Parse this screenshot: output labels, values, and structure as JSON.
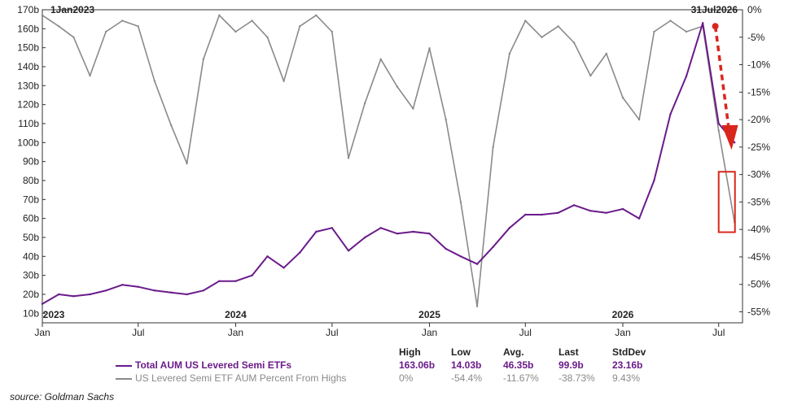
{
  "chart_data": {
    "type": "line",
    "date_range": {
      "start": "1Jan2023",
      "end": "31Jul2026"
    },
    "left_axis": {
      "ticks": [
        "10b",
        "20b",
        "30b",
        "40b",
        "50b",
        "60b",
        "70b",
        "80b",
        "90b",
        "100b",
        "110b",
        "120b",
        "130b",
        "140b",
        "150b",
        "160b",
        "170b"
      ],
      "ylim": [
        5,
        170
      ]
    },
    "right_axis": {
      "ticks": [
        "0%",
        "-5%",
        "-10%",
        "-15%",
        "-20%",
        "-25%",
        "-30%",
        "-35%",
        "-40%",
        "-45%",
        "-50%",
        "-55%"
      ],
      "ylim": [
        -57,
        0
      ]
    },
    "x_ticks": [
      "Jan",
      "Jul",
      "Jan",
      "Jul",
      "Jan",
      "Jul",
      "Jan",
      "Jul"
    ],
    "year_labels": [
      "2023",
      "2024",
      "2025",
      "2026"
    ],
    "series": [
      {
        "name": "Total AUM US Levered Semi ETFs",
        "axis": "left",
        "color": "#6a1b8a",
        "points": [
          [
            "2023-01-01",
            15
          ],
          [
            "2023-02-01",
            20
          ],
          [
            "2023-03-01",
            19
          ],
          [
            "2023-04-01",
            20
          ],
          [
            "2023-05-01",
            22
          ],
          [
            "2023-06-01",
            25
          ],
          [
            "2023-07-01",
            24
          ],
          [
            "2023-08-01",
            22
          ],
          [
            "2023-09-01",
            21
          ],
          [
            "2023-10-01",
            20
          ],
          [
            "2023-11-01",
            22
          ],
          [
            "2023-12-01",
            27
          ],
          [
            "2024-01-01",
            27
          ],
          [
            "2024-02-01",
            30
          ],
          [
            "2024-03-01",
            40
          ],
          [
            "2024-04-01",
            34
          ],
          [
            "2024-05-01",
            42
          ],
          [
            "2024-06-01",
            53
          ],
          [
            "2024-07-01",
            55
          ],
          [
            "2024-08-01",
            43
          ],
          [
            "2024-09-01",
            50
          ],
          [
            "2024-10-01",
            55
          ],
          [
            "2024-11-01",
            52
          ],
          [
            "2024-12-01",
            53
          ],
          [
            "2025-01-01",
            52
          ],
          [
            "2025-02-01",
            44
          ],
          [
            "2025-03-01",
            40
          ],
          [
            "2025-04-01",
            36
          ],
          [
            "2025-05-01",
            45
          ],
          [
            "2025-06-01",
            55
          ],
          [
            "2025-07-01",
            62
          ],
          [
            "2025-08-01",
            62
          ],
          [
            "2025-09-01",
            63
          ],
          [
            "2025-10-01",
            67
          ],
          [
            "2025-11-01",
            64
          ],
          [
            "2025-12-01",
            63
          ],
          [
            "2026-01-01",
            65
          ],
          [
            "2026-02-01",
            60
          ],
          [
            "2026-03-01",
            80
          ],
          [
            "2026-04-01",
            115
          ],
          [
            "2026-05-01",
            135
          ],
          [
            "2026-06-01",
            163
          ],
          [
            "2026-07-01",
            110
          ],
          [
            "2026-07-31",
            100
          ]
        ]
      },
      {
        "name": "US Levered Semi ETF AUM Percent From Highs",
        "axis": "right",
        "color": "#8a8a8a",
        "points": [
          [
            "2023-01-01",
            -1
          ],
          [
            "2023-02-01",
            -3
          ],
          [
            "2023-03-01",
            -5
          ],
          [
            "2023-04-01",
            -12
          ],
          [
            "2023-05-01",
            -4
          ],
          [
            "2023-06-01",
            -2
          ],
          [
            "2023-07-01",
            -3
          ],
          [
            "2023-08-01",
            -13
          ],
          [
            "2023-09-01",
            -21
          ],
          [
            "2023-10-01",
            -28
          ],
          [
            "2023-11-01",
            -9
          ],
          [
            "2023-12-01",
            -1
          ],
          [
            "2024-01-01",
            -4
          ],
          [
            "2024-02-01",
            -2
          ],
          [
            "2024-03-01",
            -5
          ],
          [
            "2024-04-01",
            -13
          ],
          [
            "2024-05-01",
            -3
          ],
          [
            "2024-06-01",
            -1
          ],
          [
            "2024-07-01",
            -4
          ],
          [
            "2024-08-01",
            -27
          ],
          [
            "2024-09-01",
            -17
          ],
          [
            "2024-10-01",
            -9
          ],
          [
            "2024-11-01",
            -14
          ],
          [
            "2024-12-01",
            -18
          ],
          [
            "2025-01-01",
            -7
          ],
          [
            "2025-02-01",
            -20
          ],
          [
            "2025-03-01",
            -35
          ],
          [
            "2025-04-01",
            -54
          ],
          [
            "2025-05-01",
            -25
          ],
          [
            "2025-06-01",
            -8
          ],
          [
            "2025-07-01",
            -2
          ],
          [
            "2025-08-01",
            -5
          ],
          [
            "2025-09-01",
            -3
          ],
          [
            "2025-10-01",
            -6
          ],
          [
            "2025-11-01",
            -12
          ],
          [
            "2025-12-01",
            -8
          ],
          [
            "2026-01-01",
            -16
          ],
          [
            "2026-02-01",
            -20
          ],
          [
            "2026-03-01",
            -4
          ],
          [
            "2026-04-01",
            -2
          ],
          [
            "2026-05-01",
            -4
          ],
          [
            "2026-06-01",
            -3
          ],
          [
            "2026-07-01",
            -22
          ],
          [
            "2026-07-31",
            -38.73
          ]
        ]
      }
    ],
    "stats": {
      "headers": [
        "High",
        "Low",
        "Avg.",
        "Last",
        "StdDev"
      ],
      "rows": [
        {
          "name": "Total AUM US Levered Semi ETFs",
          "values": [
            "163.06b",
            "14.03b",
            "46.35b",
            "99.9b",
            "23.16b"
          ]
        },
        {
          "name": "US Levered Semi ETF AUM Percent From Highs",
          "values": [
            "0%",
            "-54.4%",
            "-11.67%",
            "-38.73%",
            "9.43%"
          ]
        }
      ]
    },
    "annotations": [
      "red dashed arrow pointing down at the end of 2026 purple line",
      "red box around the recent drawdown near -30% to -40%"
    ],
    "grid": false
  },
  "source": "source: Goldman Sachs"
}
